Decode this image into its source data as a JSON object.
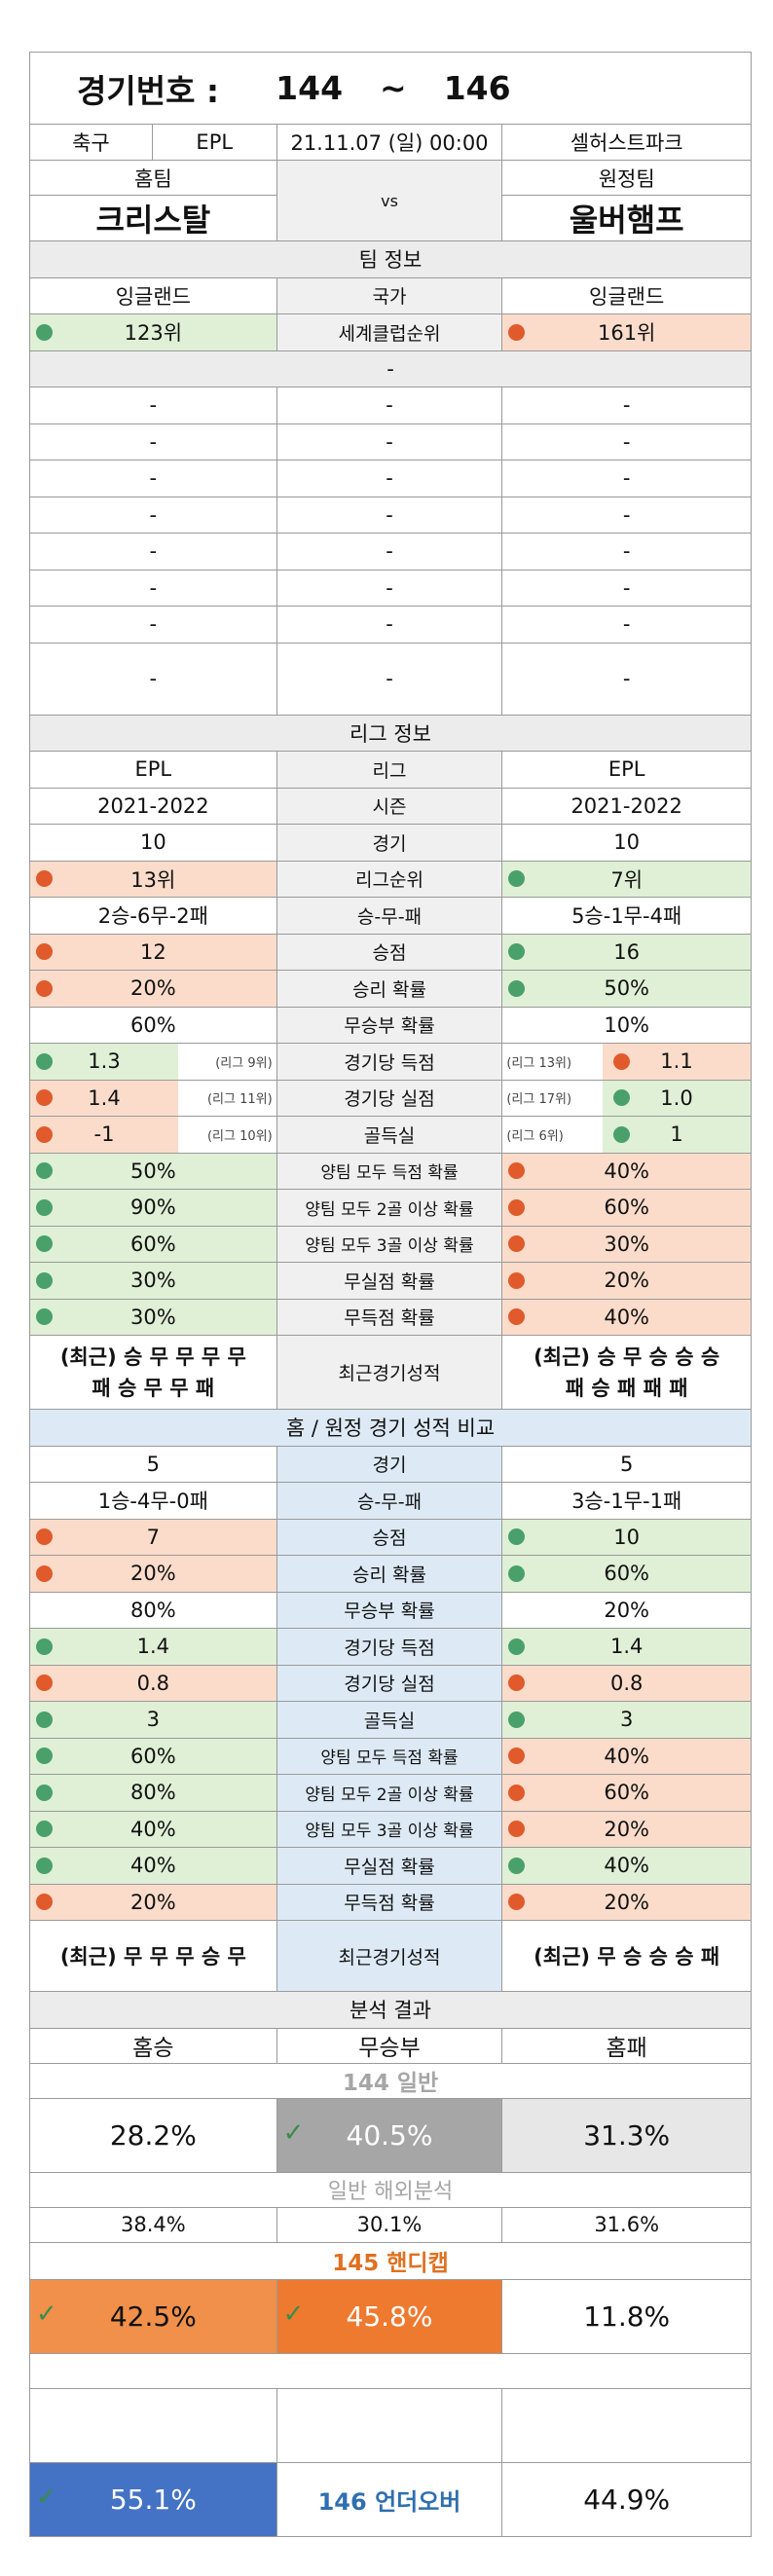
{
  "header": {
    "label": "경기번호 :",
    "from": "144",
    "tilde": "~",
    "to": "146"
  },
  "match": {
    "sport": "축구",
    "league": "EPL",
    "datetime": "21.11.07 (일) 00:00",
    "venue": "셀허스트파크"
  },
  "teams": {
    "home_label": "홈팀",
    "away_label": "원정팀",
    "home": "크리스탈",
    "vs": "vs",
    "away": "울버햄프"
  },
  "sections": {
    "team_info": "팀 정보",
    "league_info": "리그 정보",
    "comparison": "홈 / 원정 경기 성적 비교",
    "analysis": "분석 결과",
    "dash": "-"
  },
  "team_info": [
    {
      "home": "잉글랜드",
      "label": "국가",
      "away": "잉글랜드"
    },
    {
      "home": "123위",
      "label": "세계클럽순위",
      "away": "161위",
      "hd": "g",
      "ad": "o"
    }
  ],
  "dash_rows": 8,
  "league_rows": [
    {
      "home": "EPL",
      "label": "리그",
      "away": "EPL"
    },
    {
      "home": "2021-2022",
      "label": "시즌",
      "away": "2021-2022"
    },
    {
      "home": "10",
      "label": "경기",
      "away": "10"
    },
    {
      "home": "13위",
      "label": "리그순위",
      "away": "7위",
      "hd": "o",
      "ad": "g"
    },
    {
      "home": "2승-6무-2패",
      "label": "승-무-패",
      "away": "5승-1무-4패"
    },
    {
      "home": "12",
      "label": "승점",
      "away": "16",
      "hd": "o",
      "ad": "g"
    },
    {
      "home": "20%",
      "label": "승리 확률",
      "away": "50%",
      "hd": "o",
      "ad": "g"
    },
    {
      "home": "60%",
      "label": "무승부 확률",
      "away": "10%"
    },
    {
      "home": "1.3",
      "hs": "(리그 9위)",
      "label": "경기당 득점",
      "away": "1.1",
      "as": "(리그 13위)",
      "hd": "g",
      "ad": "o"
    },
    {
      "home": "1.4",
      "hs": "(리그 11위)",
      "label": "경기당 실점",
      "away": "1.0",
      "as": "(리그 17위)",
      "hd": "o",
      "ad": "g"
    },
    {
      "home": "-1",
      "hs": "(리그 10위)",
      "label": "골득실",
      "away": "1",
      "as": "(리그 6위)",
      "hd": "o",
      "ad": "g"
    },
    {
      "home": "50%",
      "label": "양팀 모두 득점 확률",
      "away": "40%",
      "hd": "g",
      "ad": "o"
    },
    {
      "home": "90%",
      "label": "양팀 모두 2골 이상 확률",
      "away": "60%",
      "hd": "g",
      "ad": "o"
    },
    {
      "home": "60%",
      "label": "양팀 모두 3골 이상 확률",
      "away": "30%",
      "hd": "g",
      "ad": "o"
    },
    {
      "home": "30%",
      "label": "무실점 확률",
      "away": "20%",
      "hd": "g",
      "ad": "o"
    },
    {
      "home": "30%",
      "label": "무득점 확률",
      "away": "40%",
      "hd": "g",
      "ad": "o"
    }
  ],
  "league_recent": {
    "home1": "(최근) 승 무 무 무 무",
    "home2": "패 승 무 무 패",
    "label": "최근경기성적",
    "away1": "(최근) 승 무 승 승 승",
    "away2": "패 승 패 패 패"
  },
  "comp_rows": [
    {
      "home": "5",
      "label": "경기",
      "away": "5"
    },
    {
      "home": "1승-4무-0패",
      "label": "승-무-패",
      "away": "3승-1무-1패"
    },
    {
      "home": "7",
      "label": "승점",
      "away": "10",
      "hd": "o",
      "ad": "g"
    },
    {
      "home": "20%",
      "label": "승리 확률",
      "away": "60%",
      "hd": "o",
      "ad": "g"
    },
    {
      "home": "80%",
      "label": "무승부 확률",
      "away": "20%"
    },
    {
      "home": "1.4",
      "label": "경기당 득점",
      "away": "1.4",
      "hd": "g",
      "ad": "g"
    },
    {
      "home": "0.8",
      "label": "경기당 실점",
      "away": "0.8",
      "hd": "o",
      "ad": "o"
    },
    {
      "home": "3",
      "label": "골득실",
      "away": "3",
      "hd": "g",
      "ad": "g"
    },
    {
      "home": "60%",
      "label": "양팀 모두 득점 확률",
      "away": "40%",
      "hd": "g",
      "ad": "o"
    },
    {
      "home": "80%",
      "label": "양팀 모두 2골 이상 확률",
      "away": "60%",
      "hd": "g",
      "ad": "o"
    },
    {
      "home": "40%",
      "label": "양팀 모두 3골 이상 확률",
      "away": "20%",
      "hd": "g",
      "ad": "o"
    },
    {
      "home": "40%",
      "label": "무실점 확률",
      "away": "40%",
      "hd": "g",
      "ad": "g"
    },
    {
      "home": "20%",
      "label": "무득점 확률",
      "away": "20%",
      "hd": "o",
      "ad": "o"
    }
  ],
  "comp_recent": {
    "home": "(최근) 무 무 무 승 무",
    "label": "최근경기성적",
    "away": "(최근) 무 승 승 승 패"
  },
  "analysis": {
    "cols": [
      "홈승",
      "무승부",
      "홈패"
    ],
    "general_title": "144 일반",
    "general": [
      "28.2%",
      "40.5%",
      "31.3%"
    ],
    "overseas_title": "일반 해외분석",
    "overseas": [
      "38.4%",
      "30.1%",
      "31.6%"
    ],
    "handicap_title": "145 핸디캡",
    "handicap": [
      "42.5%",
      "45.8%",
      "11.8%"
    ],
    "uo_label": "146 언더오버",
    "uo": [
      "55.1%",
      "44.9%"
    ]
  },
  "colors": {
    "green": "#dff0d6",
    "orange": "#fbdccb",
    "accent_orange": "#ee8130",
    "blue": "#4472c4",
    "gray": "#a6a6a6"
  }
}
